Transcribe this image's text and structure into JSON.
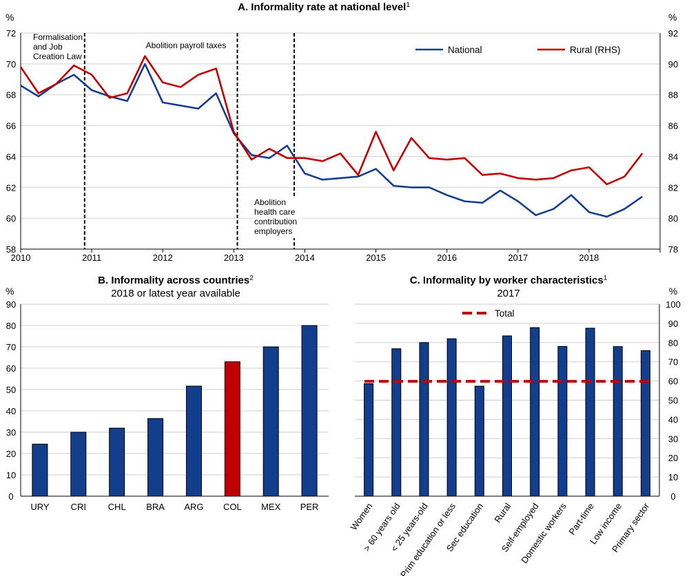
{
  "colors": {
    "national": "#133d8d",
    "rural": "#c00000",
    "bar": "#133d8d",
    "highlight": "#c00000",
    "total": "#c00000",
    "grid": "#cfcfcf"
  },
  "chart_data": [
    {
      "id": "A",
      "type": "line",
      "title": "A. Informality rate at national level",
      "title_sup": "1",
      "ylabel_left": "%",
      "ylabel_right": "%",
      "ylim": [
        58,
        72
      ],
      "ylim_right": [
        78,
        92
      ],
      "yticks": [
        58,
        60,
        62,
        64,
        66,
        68,
        70,
        72
      ],
      "yticks_right": [
        78,
        80,
        82,
        84,
        86,
        88,
        90,
        92
      ],
      "x_range": [
        2010,
        2019
      ],
      "xtick_labels": [
        "2010",
        "2011",
        "2012",
        "2013",
        "2014",
        "2015",
        "2016",
        "2017",
        "2018"
      ],
      "grid": "horizontal",
      "legend_position": "top-right",
      "series": [
        {
          "name": "National",
          "axis": "left",
          "x": [
            2010.0,
            2010.25,
            2010.5,
            2010.75,
            2011.0,
            2011.25,
            2011.5,
            2011.75,
            2012.0,
            2012.25,
            2012.5,
            2012.75,
            2013.0,
            2013.25,
            2013.5,
            2013.75,
            2014.0,
            2014.25,
            2014.5,
            2014.75,
            2015.0,
            2015.25,
            2015.5,
            2015.75,
            2016.0,
            2016.25,
            2016.5,
            2016.75,
            2017.0,
            2017.25,
            2017.5,
            2017.75,
            2018.0,
            2018.25,
            2018.5,
            2018.75
          ],
          "values": [
            68.6,
            67.9,
            68.7,
            69.3,
            68.3,
            67.9,
            67.6,
            70.0,
            67.5,
            67.3,
            67.1,
            68.1,
            65.5,
            64.1,
            63.9,
            64.7,
            62.9,
            62.5,
            62.6,
            62.7,
            63.2,
            62.1,
            62.0,
            62.0,
            61.5,
            61.1,
            61.0,
            61.8,
            61.1,
            60.2,
            60.6,
            61.5,
            60.4,
            60.1,
            60.6,
            61.4
          ]
        },
        {
          "name": "Rural (RHS)",
          "axis": "right",
          "x": [
            2010.0,
            2010.25,
            2010.5,
            2010.75,
            2011.0,
            2011.25,
            2011.5,
            2011.75,
            2012.0,
            2012.25,
            2012.5,
            2012.75,
            2013.0,
            2013.25,
            2013.5,
            2013.75,
            2014.0,
            2014.25,
            2014.5,
            2014.75,
            2015.0,
            2015.25,
            2015.5,
            2015.75,
            2016.0,
            2016.25,
            2016.5,
            2016.75,
            2017.0,
            2017.25,
            2017.5,
            2017.75,
            2018.0,
            2018.25,
            2018.5,
            2018.75
          ],
          "values": [
            89.8,
            88.1,
            88.7,
            89.9,
            89.3,
            87.8,
            88.1,
            90.5,
            88.8,
            88.5,
            89.3,
            89.7,
            85.6,
            83.8,
            84.5,
            83.9,
            83.9,
            83.7,
            84.2,
            82.8,
            85.6,
            83.1,
            85.2,
            83.9,
            83.8,
            83.9,
            82.8,
            82.9,
            82.6,
            82.5,
            82.6,
            83.1,
            83.3,
            82.2,
            82.7,
            84.2
          ]
        }
      ],
      "vlines": [
        {
          "x": 2010.9,
          "label": "Formalisation and Job Creation Law",
          "label_lines": [
            "Formalisation",
            "and Job",
            "Creation Law"
          ]
        },
        {
          "x": 2013.05,
          "label": "Abolition payroll taxes",
          "label_lines": [
            "Abolition payroll taxes"
          ]
        },
        {
          "x": 2013.85,
          "label": "Abolition health care contribution employers",
          "label_lines": [
            "Abolition",
            "health care",
            "contribution",
            "employers"
          ]
        }
      ]
    },
    {
      "id": "B",
      "type": "bar",
      "title": "B. Informality across countries",
      "title_sup": "2",
      "subtitle": "2018 or latest year available",
      "ylabel": "%",
      "ylim": [
        0,
        90
      ],
      "yticks": [
        0,
        10,
        20,
        30,
        40,
        50,
        60,
        70,
        80,
        90
      ],
      "grid": "horizontal",
      "categories": [
        "URY",
        "CRI",
        "CHL",
        "BRA",
        "ARG",
        "COL",
        "MEX",
        "PER"
      ],
      "values": [
        24.4,
        30.0,
        31.9,
        36.4,
        51.6,
        63.0,
        70.0,
        80.0
      ],
      "highlight": "COL"
    },
    {
      "id": "C",
      "type": "bar",
      "title": "C. Informality by worker characteristics",
      "title_sup": "1",
      "subtitle": "2017",
      "ylabel": "%",
      "ylim": [
        0,
        100
      ],
      "yticks": [
        0,
        10,
        20,
        30,
        40,
        50,
        60,
        70,
        80,
        90,
        100
      ],
      "grid": "horizontal",
      "categories": [
        "Women",
        "> 60 years old",
        "< 25 years-old",
        "Prim education or less",
        "Sec education",
        "Rural",
        "Self-employed",
        "Domestic workers",
        "Part-time",
        "Low income",
        "Primary sector"
      ],
      "values": [
        58.6,
        76.8,
        80.0,
        82.0,
        57.3,
        83.5,
        87.8,
        78.0,
        87.5,
        77.9,
        75.8
      ],
      "total": {
        "name": "Total",
        "value": 59.8
      },
      "legend_position": "top-center"
    }
  ]
}
